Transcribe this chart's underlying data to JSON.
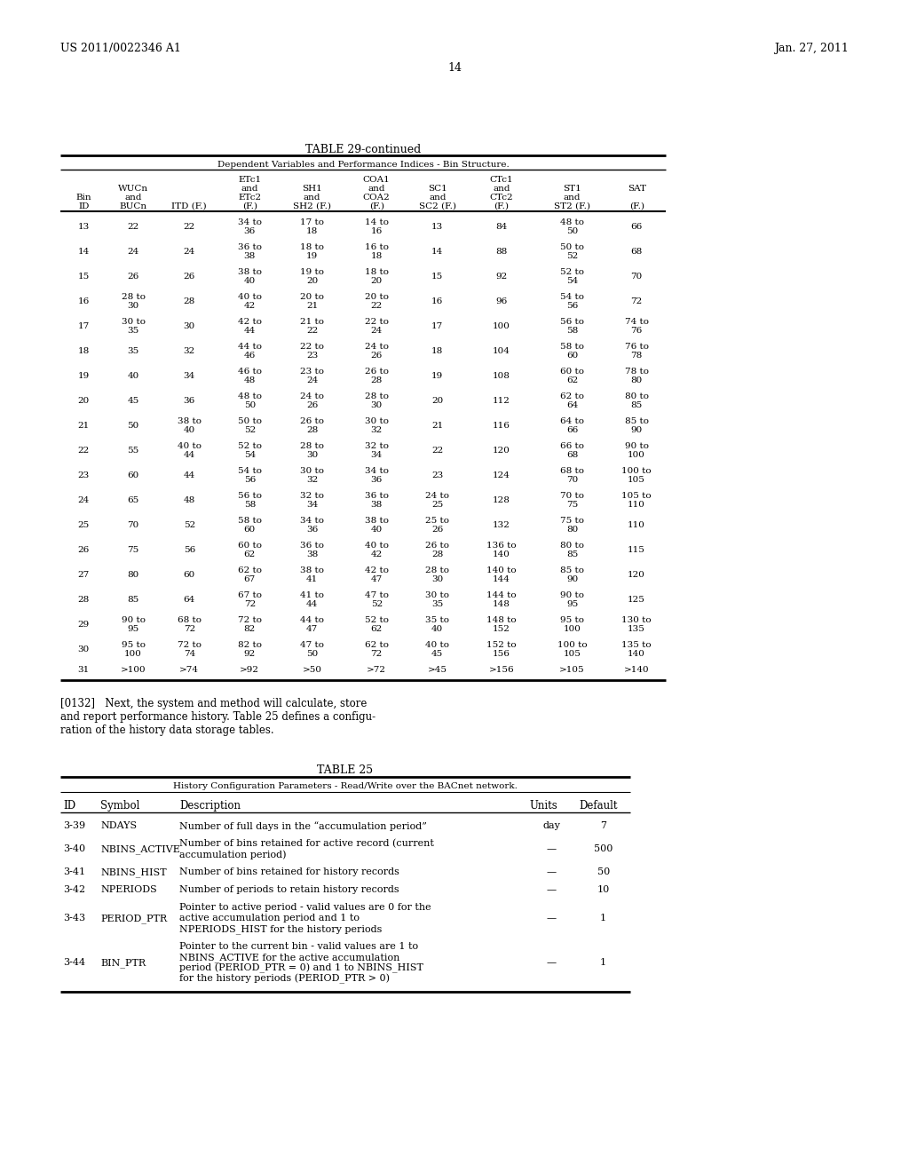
{
  "header_left": "US 2011/0022346 A1",
  "header_right": "Jan. 27, 2011",
  "page_number": "14",
  "table1_title": "TABLE 29-continued",
  "table1_subtitle": "Dependent Variables and Performance Indices - Bin Structure.",
  "table2_title": "TABLE 25",
  "table2_subtitle": "History Configuration Parameters - Read/Write over the BACnet network.",
  "table2_col_headers": [
    "ID",
    "Symbol",
    "Description",
    "Units",
    "Default"
  ],
  "paragraph": "[0132]   Next, the system and method will calculate, store\nand report performance history. Table 25 defines a configu-\nration of the history data storage tables.",
  "table1_rows": [
    [
      "13",
      "22",
      "22",
      "34 to\n36",
      "17 to\n18",
      "14 to\n16",
      "13",
      "84",
      "48 to\n50",
      "66"
    ],
    [
      "14",
      "24",
      "24",
      "36 to\n38",
      "18 to\n19",
      "16 to\n18",
      "14",
      "88",
      "50 to\n52",
      "68"
    ],
    [
      "15",
      "26",
      "26",
      "38 to\n40",
      "19 to\n20",
      "18 to\n20",
      "15",
      "92",
      "52 to\n54",
      "70"
    ],
    [
      "16",
      "28 to\n30",
      "28",
      "40 to\n42",
      "20 to\n21",
      "20 to\n22",
      "16",
      "96",
      "54 to\n56",
      "72"
    ],
    [
      "17",
      "30 to\n35",
      "30",
      "42 to\n44",
      "21 to\n22",
      "22 to\n24",
      "17",
      "100",
      "56 to\n58",
      "74 to\n76"
    ],
    [
      "18",
      "35",
      "32",
      "44 to\n46",
      "22 to\n23",
      "24 to\n26",
      "18",
      "104",
      "58 to\n60",
      "76 to\n78"
    ],
    [
      "19",
      "40",
      "34",
      "46 to\n48",
      "23 to\n24",
      "26 to\n28",
      "19",
      "108",
      "60 to\n62",
      "78 to\n80"
    ],
    [
      "20",
      "45",
      "36",
      "48 to\n50",
      "24 to\n26",
      "28 to\n30",
      "20",
      "112",
      "62 to\n64",
      "80 to\n85"
    ],
    [
      "21",
      "50",
      "38 to\n40",
      "50 to\n52",
      "26 to\n28",
      "30 to\n32",
      "21",
      "116",
      "64 to\n66",
      "85 to\n90"
    ],
    [
      "22",
      "55",
      "40 to\n44",
      "52 to\n54",
      "28 to\n30",
      "32 to\n34",
      "22",
      "120",
      "66 to\n68",
      "90 to\n100"
    ],
    [
      "23",
      "60",
      "44",
      "54 to\n56",
      "30 to\n32",
      "34 to\n36",
      "23",
      "124",
      "68 to\n70",
      "100 to\n105"
    ],
    [
      "24",
      "65",
      "48",
      "56 to\n58",
      "32 to\n34",
      "36 to\n38",
      "24 to\n25",
      "128",
      "70 to\n75",
      "105 to\n110"
    ],
    [
      "25",
      "70",
      "52",
      "58 to\n60",
      "34 to\n36",
      "38 to\n40",
      "25 to\n26",
      "132",
      "75 to\n80",
      "110"
    ],
    [
      "26",
      "75",
      "56",
      "60 to\n62",
      "36 to\n38",
      "40 to\n42",
      "26 to\n28",
      "136 to\n140",
      "80 to\n85",
      "115"
    ],
    [
      "27",
      "80",
      "60",
      "62 to\n67",
      "38 to\n41",
      "42 to\n47",
      "28 to\n30",
      "140 to\n144",
      "85 to\n90",
      "120"
    ],
    [
      "28",
      "85",
      "64",
      "67 to\n72",
      "41 to\n44",
      "47 to\n52",
      "30 to\n35",
      "144 to\n148",
      "90 to\n95",
      "125"
    ],
    [
      "29",
      "90 to\n95",
      "68 to\n72",
      "72 to\n82",
      "44 to\n47",
      "52 to\n62",
      "35 to\n40",
      "148 to\n152",
      "95 to\n100",
      "130 to\n135"
    ],
    [
      "30",
      "95 to\n100",
      "72 to\n74",
      "82 to\n92",
      "47 to\n50",
      "62 to\n72",
      "40 to\n45",
      "152 to\n156",
      "100 to\n105",
      "135 to\n140"
    ],
    [
      "31",
      ">100",
      ">74",
      ">92",
      ">50",
      ">72",
      ">45",
      ">156",
      ">105",
      ">140"
    ]
  ],
  "table2_rows": [
    [
      "3-39",
      "NDAYS",
      "Number of full days in the “accumulation period”",
      "day",
      "7"
    ],
    [
      "3-40",
      "NBINS_ACTIVE",
      "Number of bins retained for active record (current\naccumulation period)",
      "—",
      "500"
    ],
    [
      "3-41",
      "NBINS_HIST",
      "Number of bins retained for history records",
      "—",
      "50"
    ],
    [
      "3-42",
      "NPERIODS",
      "Number of periods to retain history records",
      "—",
      "10"
    ],
    [
      "3-43",
      "PERIOD_PTR",
      "Pointer to active period - valid values are 0 for the\nactive accumulation period and 1 to\nNPERIODS_HIST for the history periods",
      "—",
      "1"
    ],
    [
      "3-44",
      "BIN_PTR",
      "Pointer to the current bin - valid values are 1 to\nNBINS_ACTIVE for the active accumulation\nperiod (PERIOD_PTR = 0) and 1 to NBINS_HIST\nfor the history periods (PERIOD_PTR > 0)",
      "—",
      "1"
    ]
  ]
}
